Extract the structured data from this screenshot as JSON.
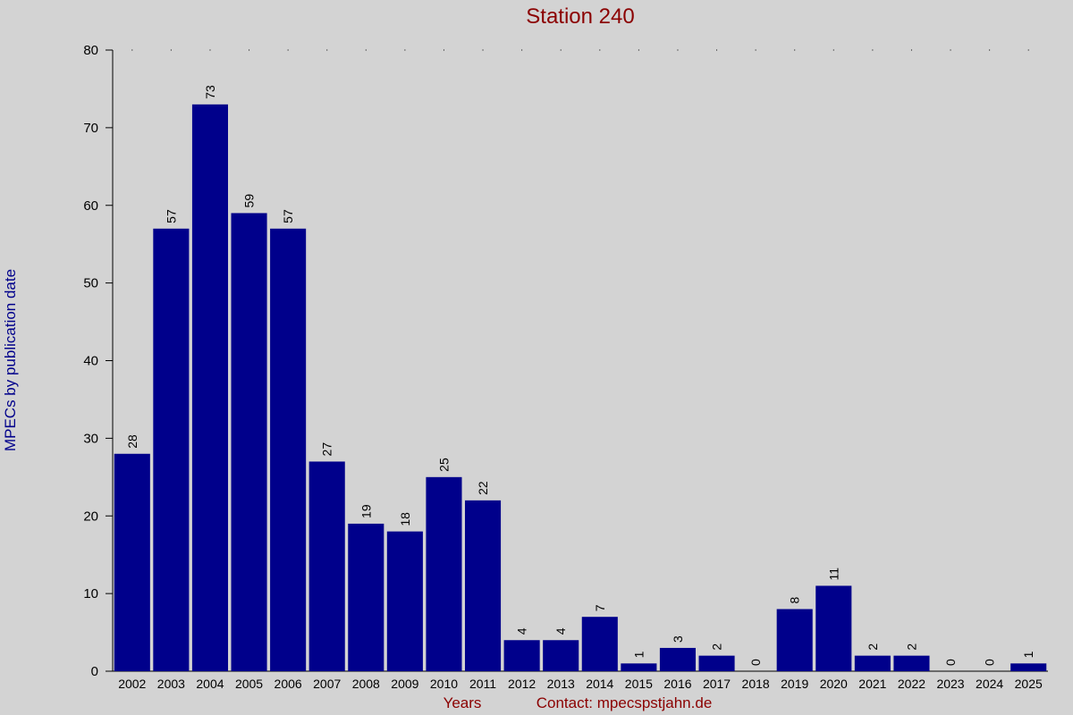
{
  "chart_data": {
    "type": "bar",
    "title": "Station 240",
    "x_label": "Years",
    "contact": "Contact: mpecspstjahn.de",
    "y_label": "MPECs by publication date",
    "categories": [
      "2002",
      "2003",
      "2004",
      "2005",
      "2006",
      "2007",
      "2008",
      "2009",
      "2010",
      "2011",
      "2012",
      "2013",
      "2014",
      "2015",
      "2016",
      "2017",
      "2018",
      "2019",
      "2020",
      "2021",
      "2022",
      "2023",
      "2024",
      "2025"
    ],
    "values": [
      28,
      57,
      73,
      59,
      57,
      27,
      19,
      18,
      25,
      22,
      4,
      4,
      7,
      1,
      3,
      2,
      0,
      8,
      11,
      2,
      2,
      0,
      0,
      1
    ],
    "color": "#00008b",
    "ylim": [
      0,
      80
    ],
    "yticks": [
      0,
      10,
      20,
      30,
      40,
      50,
      60,
      70,
      80
    ],
    "grid": false
  }
}
